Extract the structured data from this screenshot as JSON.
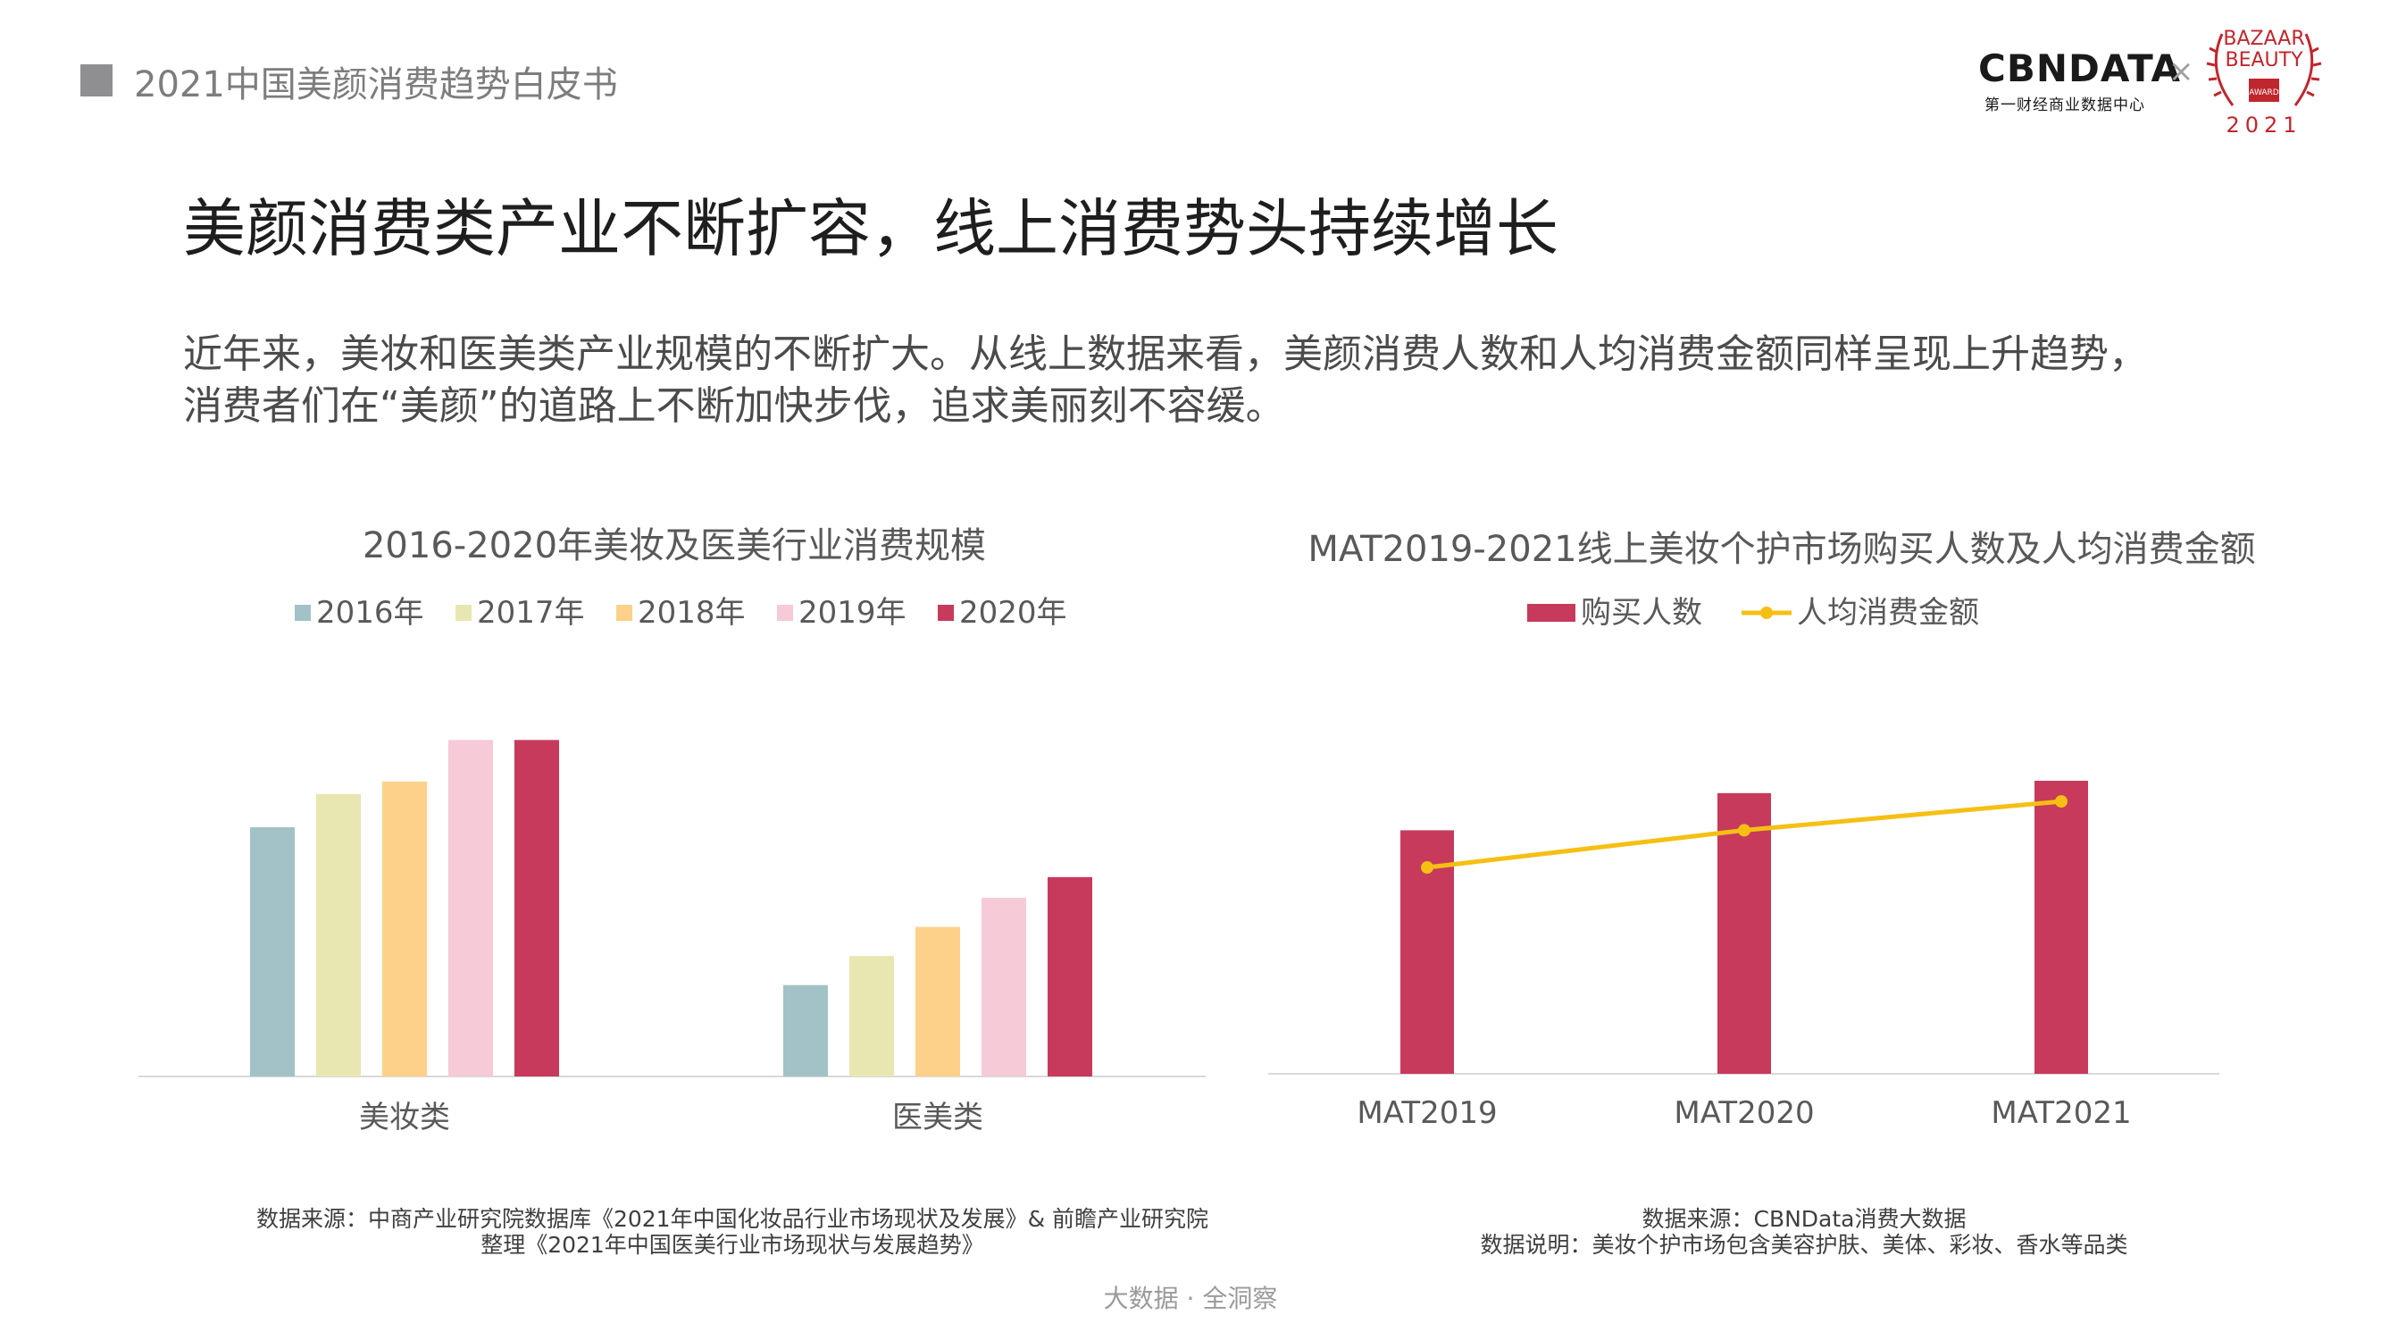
{
  "header": {
    "report_title": "2021中国美颜消费趋势白皮书"
  },
  "logo": {
    "brand": "CBNDATA",
    "brand_sub": "第一财经商业数据中心",
    "times": "×",
    "award_line1": "BAZAAR",
    "award_line2": "BEAUTY",
    "award_line3": "AWARD",
    "award_year": "2021"
  },
  "page": {
    "title": "美颜消费类产业不断扩容，线上消费势头持续增长",
    "intro_line1": "近年来，美妆和医美类产业规模的不断扩大。从线上数据来看，美颜消费人数和人均消费金额同样呈现上升趋势，",
    "intro_line2": "消费者们在“美颜”的道路上不断加快步伐，追求美丽刻不容缓。"
  },
  "colors": {
    "y2016": "#a2c2c7",
    "y2017": "#e8e7b1",
    "y2018": "#fdd189",
    "y2019": "#f6cad7",
    "y2020": "#c73a5b",
    "line": "#f6bf14",
    "axis": "#d9d9d9"
  },
  "chart_data": [
    {
      "type": "bar",
      "title": "2016-2020年美妆及医美行业消费规模",
      "categories": [
        "美妆类",
        "医美类"
      ],
      "series": [
        {
          "name": "2016年",
          "values": [
            60,
            22
          ]
        },
        {
          "name": "2017年",
          "values": [
            68,
            29
          ]
        },
        {
          "name": "2018年",
          "values": [
            71,
            36
          ]
        },
        {
          "name": "2019年",
          "values": [
            81,
            43
          ]
        },
        {
          "name": "2020年",
          "values": [
            81,
            48
          ]
        }
      ],
      "ylim": [
        0,
        100
      ],
      "legend": "top",
      "grid": false
    },
    {
      "type": "bar",
      "title": "MAT2019-2021线上美妆个护市场购买人数及人均消费金额",
      "categories": [
        "MAT2019",
        "MAT2020",
        "MAT2021"
      ],
      "series": [
        {
          "name": "购买人数",
          "type": "bar",
          "values": [
            59,
            68,
            71
          ]
        },
        {
          "name": "人均消费金额",
          "type": "line",
          "values": [
            50,
            59,
            66
          ]
        }
      ],
      "ylim": [
        0,
        100
      ],
      "legend": "top",
      "grid": false
    }
  ],
  "sources": {
    "left_line1": "数据来源：中商产业研究院数据库《2021年中国化妆品行业市场现状及发展》& 前瞻产业研究院",
    "left_line2": "整理《2021年中国医美行业市场现状与发展趋势》",
    "right_line1": "数据来源：CBNData消费大数据",
    "right_line2": "数据说明：美妆个护市场包含美容护肤、美体、彩妆、香水等品类"
  },
  "footer": {
    "text": "大数据 · 全洞察"
  }
}
